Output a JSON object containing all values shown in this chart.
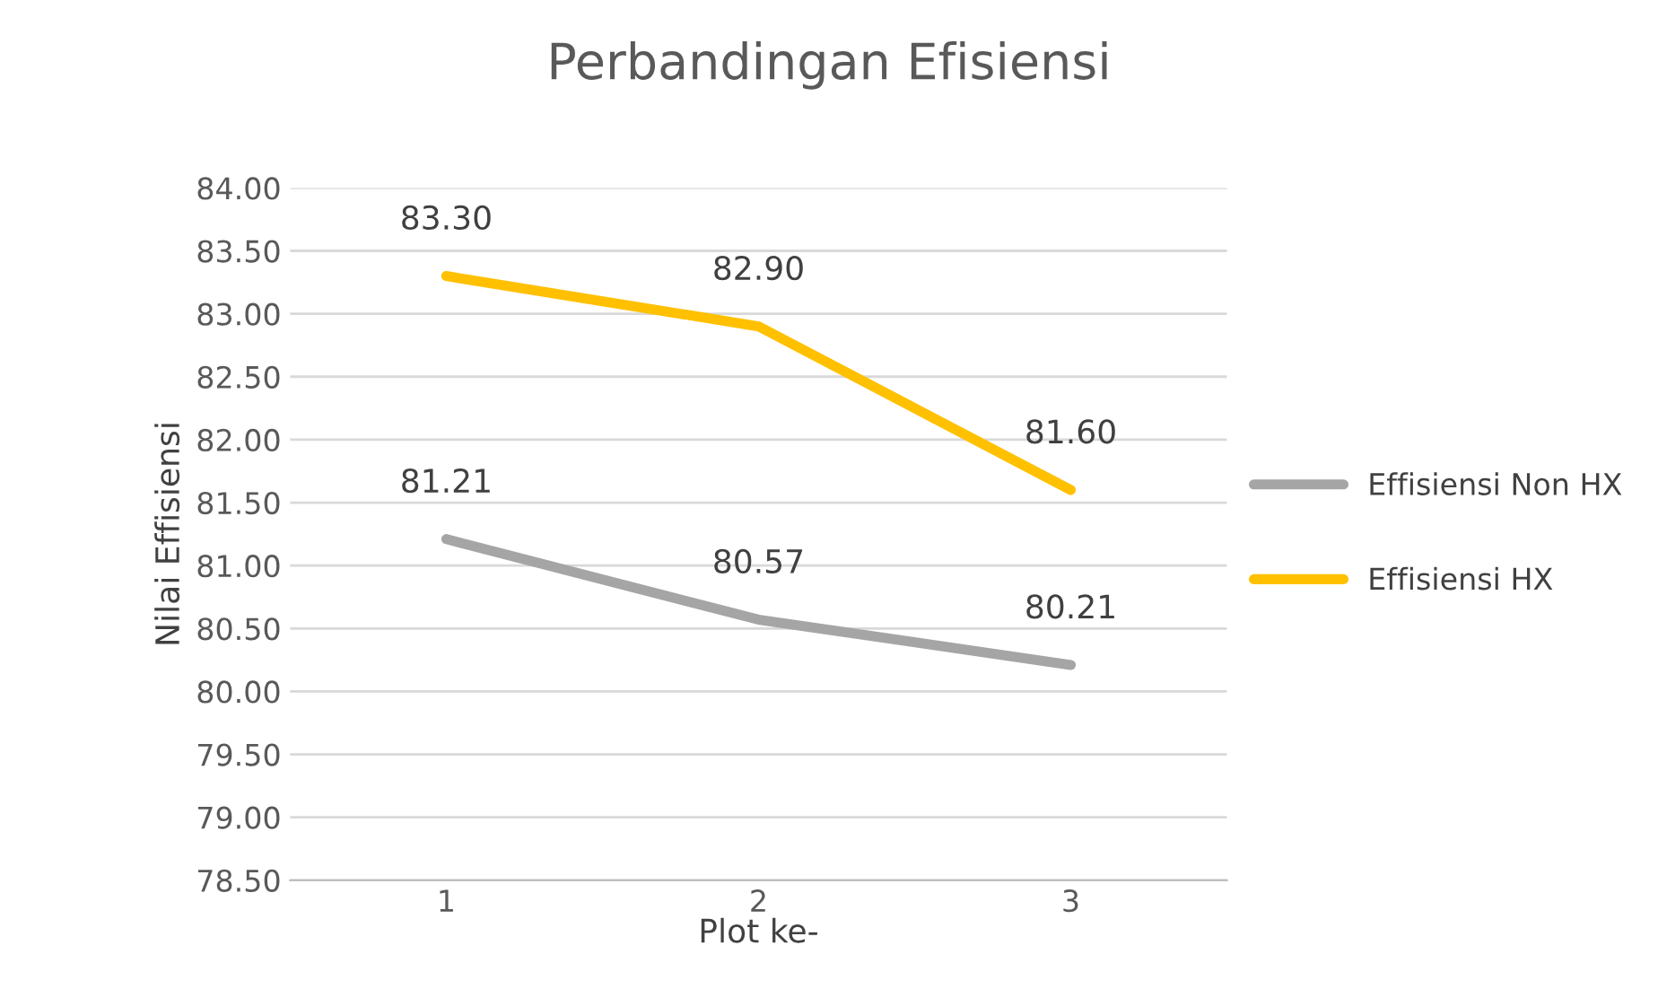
{
  "chart_data": {
    "type": "line",
    "title": "Perbandingan Efisiensi",
    "xlabel": "Plot ke-",
    "ylabel": "Nilai Effisiensi",
    "categories": [
      "1",
      "2",
      "3"
    ],
    "series": [
      {
        "name": "Effisiensi Non HX",
        "color": "#a5a5a5",
        "values": [
          81.21,
          80.57,
          80.21
        ],
        "value_labels": [
          "81.21",
          "80.57",
          "80.21"
        ]
      },
      {
        "name": "Effisiensi HX",
        "color": "#ffc000",
        "values": [
          83.3,
          82.9,
          81.6
        ],
        "value_labels": [
          "83.30",
          "82.90",
          "81.60"
        ]
      }
    ],
    "ylim": [
      78.5,
      84
    ],
    "yticks": [
      {
        "value": 78.5,
        "label": "78.50"
      },
      {
        "value": 79,
        "label": "79.00"
      },
      {
        "value": 79.5,
        "label": "79.50"
      },
      {
        "value": 80,
        "label": "80.00"
      },
      {
        "value": 80.5,
        "label": "80.50"
      },
      {
        "value": 81,
        "label": "81.00"
      },
      {
        "value": 81.5,
        "label": "81.50"
      },
      {
        "value": 82,
        "label": "82.00"
      },
      {
        "value": 82.5,
        "label": "82.50"
      },
      {
        "value": 83,
        "label": "83.00"
      },
      {
        "value": 83.5,
        "label": "83.50"
      },
      {
        "value": 84,
        "label": "84.00"
      }
    ],
    "grid": "y",
    "legend": "right",
    "marker": "none",
    "line_style": "solid"
  }
}
